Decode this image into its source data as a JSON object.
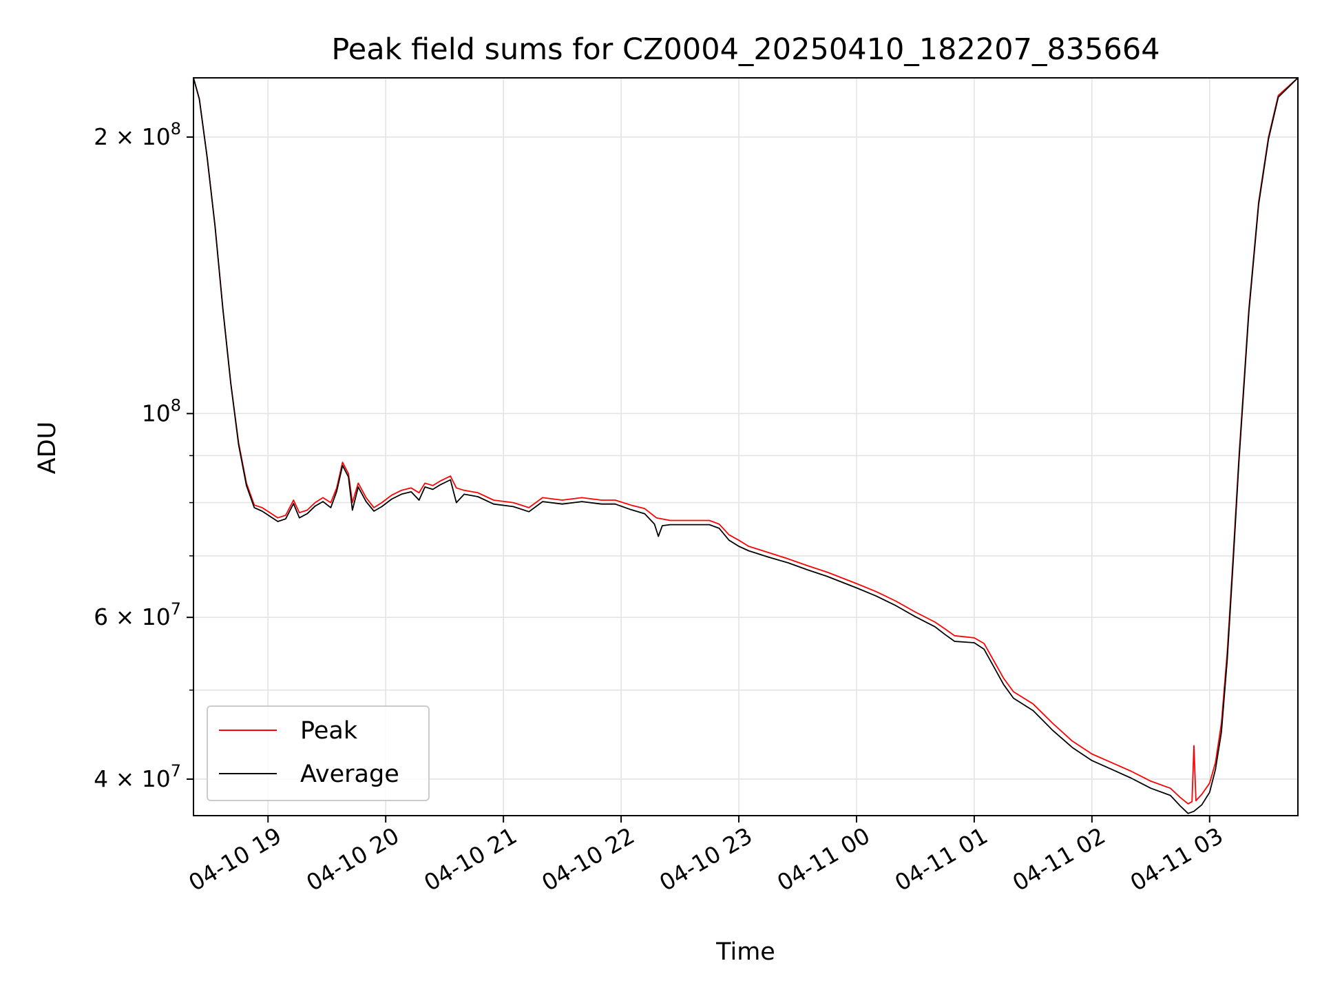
{
  "chart_data": {
    "type": "line",
    "title": "Peak field sums for CZ0004_20250410_182207_835664",
    "xlabel": "Time",
    "ylabel": "ADU",
    "y_scale": "log",
    "ylim": [
      36500000,
      232000000
    ],
    "xlim": [
      "2025-04-10 18:22",
      "2025-04-11 03:45"
    ],
    "grid": true,
    "legend_position": "lower-left",
    "x_ticks": [
      {
        "value": "2025-04-10 19:00",
        "label": "04-10 19"
      },
      {
        "value": "2025-04-10 20:00",
        "label": "04-10 20"
      },
      {
        "value": "2025-04-10 21:00",
        "label": "04-10 21"
      },
      {
        "value": "2025-04-10 22:00",
        "label": "04-10 22"
      },
      {
        "value": "2025-04-10 23:00",
        "label": "04-10 23"
      },
      {
        "value": "2025-04-11 00:00",
        "label": "04-11 00"
      },
      {
        "value": "2025-04-11 01:00",
        "label": "04-11 01"
      },
      {
        "value": "2025-04-11 02:00",
        "label": "04-11 02"
      },
      {
        "value": "2025-04-11 03:00",
        "label": "04-11 03"
      }
    ],
    "y_major_ticks": [
      {
        "value": 40000000,
        "mantissa": "4",
        "times": "×",
        "base": "10",
        "exp": "7"
      },
      {
        "value": 60000000,
        "mantissa": "6",
        "times": "×",
        "base": "10",
        "exp": "7"
      },
      {
        "value": 100000000,
        "mantissa": "",
        "times": "",
        "base": "10",
        "exp": "8"
      },
      {
        "value": 200000000,
        "mantissa": "2",
        "times": "×",
        "base": "10",
        "exp": "8"
      }
    ],
    "y_minor_ticks": [
      50000000,
      70000000,
      80000000,
      90000000
    ],
    "series": [
      {
        "name": "Peak",
        "color": "#ff0000",
        "points": [
          [
            "2025-04-10 18:22",
            232000000
          ],
          [
            "2025-04-10 18:25",
            220000000
          ],
          [
            "2025-04-10 18:29",
            190000000
          ],
          [
            "2025-04-10 18:33",
            160000000
          ],
          [
            "2025-04-10 18:37",
            130000000
          ],
          [
            "2025-04-10 18:41",
            108000000
          ],
          [
            "2025-04-10 18:45",
            93000000
          ],
          [
            "2025-04-10 18:49",
            84000000
          ],
          [
            "2025-04-10 18:53",
            79500000
          ],
          [
            "2025-04-10 18:57",
            79000000
          ],
          [
            "2025-04-10 19:01",
            78000000
          ],
          [
            "2025-04-10 19:05",
            77000000
          ],
          [
            "2025-04-10 19:09",
            77500000
          ],
          [
            "2025-04-10 19:13",
            80500000
          ],
          [
            "2025-04-10 19:16",
            78000000
          ],
          [
            "2025-04-10 19:20",
            78500000
          ],
          [
            "2025-04-10 19:24",
            80000000
          ],
          [
            "2025-04-10 19:28",
            81000000
          ],
          [
            "2025-04-10 19:32",
            80000000
          ],
          [
            "2025-04-10 19:35",
            83000000
          ],
          [
            "2025-04-10 19:38",
            88500000
          ],
          [
            "2025-04-10 19:41",
            86000000
          ],
          [
            "2025-04-10 19:43",
            80000000
          ],
          [
            "2025-04-10 19:46",
            84000000
          ],
          [
            "2025-04-10 19:50",
            81000000
          ],
          [
            "2025-04-10 19:54",
            79000000
          ],
          [
            "2025-04-10 19:58",
            80000000
          ],
          [
            "2025-04-10 20:03",
            81500000
          ],
          [
            "2025-04-10 20:08",
            82500000
          ],
          [
            "2025-04-10 20:13",
            83000000
          ],
          [
            "2025-04-10 20:17",
            82000000
          ],
          [
            "2025-04-10 20:20",
            84000000
          ],
          [
            "2025-04-10 20:24",
            83500000
          ],
          [
            "2025-04-10 20:28",
            84500000
          ],
          [
            "2025-04-10 20:33",
            85500000
          ],
          [
            "2025-04-10 20:36",
            83000000
          ],
          [
            "2025-04-10 20:40",
            82500000
          ],
          [
            "2025-04-10 20:47",
            82000000
          ],
          [
            "2025-04-10 20:55",
            80500000
          ],
          [
            "2025-04-10 21:05",
            80000000
          ],
          [
            "2025-04-10 21:13",
            79000000
          ],
          [
            "2025-04-10 21:20",
            81000000
          ],
          [
            "2025-04-10 21:30",
            80500000
          ],
          [
            "2025-04-10 21:40",
            81000000
          ],
          [
            "2025-04-10 21:50",
            80500000
          ],
          [
            "2025-04-10 21:57",
            80500000
          ],
          [
            "2025-04-10 22:05",
            79500000
          ],
          [
            "2025-04-10 22:12",
            78800000
          ],
          [
            "2025-04-10 22:18",
            77000000
          ],
          [
            "2025-04-10 22:25",
            76500000
          ],
          [
            "2025-04-10 22:35",
            76500000
          ],
          [
            "2025-04-10 22:45",
            76500000
          ],
          [
            "2025-04-10 22:50",
            75800000
          ],
          [
            "2025-04-10 22:55",
            73800000
          ],
          [
            "2025-04-10 23:00",
            72800000
          ],
          [
            "2025-04-10 23:05",
            71700000
          ],
          [
            "2025-04-10 23:15",
            70600000
          ],
          [
            "2025-04-10 23:25",
            69500000
          ],
          [
            "2025-04-10 23:35",
            68300000
          ],
          [
            "2025-04-10 23:45",
            67200000
          ],
          [
            "2025-04-11 00:00",
            65300000
          ],
          [
            "2025-04-11 00:10",
            64000000
          ],
          [
            "2025-04-11 00:20",
            62500000
          ],
          [
            "2025-04-11 00:30",
            60800000
          ],
          [
            "2025-04-11 00:40",
            59300000
          ],
          [
            "2025-04-11 00:45",
            58300000
          ],
          [
            "2025-04-11 00:50",
            57300000
          ],
          [
            "2025-04-11 01:00",
            57000000
          ],
          [
            "2025-04-11 01:05",
            56200000
          ],
          [
            "2025-04-11 01:10",
            53800000
          ],
          [
            "2025-04-11 01:15",
            51500000
          ],
          [
            "2025-04-11 01:20",
            49800000
          ],
          [
            "2025-04-11 01:30",
            48300000
          ],
          [
            "2025-04-11 01:40",
            46000000
          ],
          [
            "2025-04-11 01:50",
            44000000
          ],
          [
            "2025-04-11 02:00",
            42600000
          ],
          [
            "2025-04-11 02:10",
            41700000
          ],
          [
            "2025-04-11 02:20",
            40800000
          ],
          [
            "2025-04-11 02:30",
            39800000
          ],
          [
            "2025-04-11 02:40",
            39100000
          ],
          [
            "2025-04-11 02:45",
            38200000
          ],
          [
            "2025-04-11 02:49",
            37600000
          ],
          [
            "2025-04-11 02:51",
            37800000
          ],
          [
            "2025-04-11 02:52",
            43500000
          ],
          [
            "2025-04-11 02:53",
            37900000
          ],
          [
            "2025-04-11 02:56",
            38500000
          ],
          [
            "2025-04-11 03:00",
            39600000
          ],
          [
            "2025-04-11 03:03",
            41700000
          ],
          [
            "2025-04-11 03:06",
            46000000
          ],
          [
            "2025-04-11 03:09",
            55000000
          ],
          [
            "2025-04-11 03:12",
            70000000
          ],
          [
            "2025-04-11 03:15",
            90000000
          ],
          [
            "2025-04-11 03:20",
            130000000
          ],
          [
            "2025-04-11 03:25",
            170000000
          ],
          [
            "2025-04-11 03:30",
            200000000
          ],
          [
            "2025-04-11 03:35",
            222000000
          ],
          [
            "2025-04-11 03:45",
            232000000
          ]
        ]
      },
      {
        "name": "Average",
        "color": "#000000",
        "points": [
          [
            "2025-04-10 18:22",
            232000000
          ],
          [
            "2025-04-10 18:25",
            220000000
          ],
          [
            "2025-04-10 18:29",
            190000000
          ],
          [
            "2025-04-10 18:33",
            160000000
          ],
          [
            "2025-04-10 18:37",
            130000000
          ],
          [
            "2025-04-10 18:41",
            108000000
          ],
          [
            "2025-04-10 18:45",
            92500000
          ],
          [
            "2025-04-10 18:49",
            83500000
          ],
          [
            "2025-04-10 18:53",
            79000000
          ],
          [
            "2025-04-10 18:57",
            78300000
          ],
          [
            "2025-04-10 19:01",
            77300000
          ],
          [
            "2025-04-10 19:05",
            76300000
          ],
          [
            "2025-04-10 19:09",
            76800000
          ],
          [
            "2025-04-10 19:13",
            79800000
          ],
          [
            "2025-04-10 19:16",
            77000000
          ],
          [
            "2025-04-10 19:20",
            77800000
          ],
          [
            "2025-04-10 19:24",
            79300000
          ],
          [
            "2025-04-10 19:28",
            80200000
          ],
          [
            "2025-04-10 19:32",
            79000000
          ],
          [
            "2025-04-10 19:35",
            82300000
          ],
          [
            "2025-04-10 19:38",
            87800000
          ],
          [
            "2025-04-10 19:41",
            85300000
          ],
          [
            "2025-04-10 19:43",
            78500000
          ],
          [
            "2025-04-10 19:46",
            83200000
          ],
          [
            "2025-04-10 19:50",
            80200000
          ],
          [
            "2025-04-10 19:54",
            78300000
          ],
          [
            "2025-04-10 19:58",
            79200000
          ],
          [
            "2025-04-10 20:03",
            80700000
          ],
          [
            "2025-04-10 20:08",
            81700000
          ],
          [
            "2025-04-10 20:13",
            82200000
          ],
          [
            "2025-04-10 20:17",
            80500000
          ],
          [
            "2025-04-10 20:20",
            83200000
          ],
          [
            "2025-04-10 20:24",
            82700000
          ],
          [
            "2025-04-10 20:28",
            83700000
          ],
          [
            "2025-04-10 20:33",
            84700000
          ],
          [
            "2025-04-10 20:36",
            80000000
          ],
          [
            "2025-04-10 20:40",
            81700000
          ],
          [
            "2025-04-10 20:47",
            81200000
          ],
          [
            "2025-04-10 20:55",
            79700000
          ],
          [
            "2025-04-10 21:05",
            79200000
          ],
          [
            "2025-04-10 21:13",
            78200000
          ],
          [
            "2025-04-10 21:20",
            80200000
          ],
          [
            "2025-04-10 21:30",
            79700000
          ],
          [
            "2025-04-10 21:40",
            80200000
          ],
          [
            "2025-04-10 21:50",
            79700000
          ],
          [
            "2025-04-10 21:57",
            79700000
          ],
          [
            "2025-04-10 22:05",
            78600000
          ],
          [
            "2025-04-10 22:12",
            77800000
          ],
          [
            "2025-04-10 22:17",
            75800000
          ],
          [
            "2025-04-10 22:19",
            73500000
          ],
          [
            "2025-04-10 22:21",
            75500000
          ],
          [
            "2025-04-10 22:25",
            75700000
          ],
          [
            "2025-04-10 22:35",
            75700000
          ],
          [
            "2025-04-10 22:45",
            75700000
          ],
          [
            "2025-04-10 22:50",
            75000000
          ],
          [
            "2025-04-10 22:55",
            72800000
          ],
          [
            "2025-04-10 23:00",
            71700000
          ],
          [
            "2025-04-10 23:05",
            70900000
          ],
          [
            "2025-04-10 23:15",
            69800000
          ],
          [
            "2025-04-10 23:25",
            68800000
          ],
          [
            "2025-04-10 23:35",
            67600000
          ],
          [
            "2025-04-10 23:45",
            66500000
          ],
          [
            "2025-04-11 00:00",
            64600000
          ],
          [
            "2025-04-11 00:10",
            63300000
          ],
          [
            "2025-04-11 00:20",
            61800000
          ],
          [
            "2025-04-11 00:30",
            60100000
          ],
          [
            "2025-04-11 00:40",
            58600000
          ],
          [
            "2025-04-11 00:45",
            57500000
          ],
          [
            "2025-04-11 00:50",
            56500000
          ],
          [
            "2025-04-11 01:00",
            56300000
          ],
          [
            "2025-04-11 01:05",
            55400000
          ],
          [
            "2025-04-11 01:10",
            53000000
          ],
          [
            "2025-04-11 01:15",
            50700000
          ],
          [
            "2025-04-11 01:20",
            49000000
          ],
          [
            "2025-04-11 01:30",
            47500000
          ],
          [
            "2025-04-11 01:40",
            45200000
          ],
          [
            "2025-04-11 01:50",
            43300000
          ],
          [
            "2025-04-11 02:00",
            41900000
          ],
          [
            "2025-04-11 02:10",
            41000000
          ],
          [
            "2025-04-11 02:20",
            40100000
          ],
          [
            "2025-04-11 02:30",
            39100000
          ],
          [
            "2025-04-11 02:40",
            38400000
          ],
          [
            "2025-04-11 02:45",
            37400000
          ],
          [
            "2025-04-11 02:49",
            36700000
          ],
          [
            "2025-04-11 02:52",
            36900000
          ],
          [
            "2025-04-11 02:56",
            37500000
          ],
          [
            "2025-04-11 03:00",
            38700000
          ],
          [
            "2025-04-11 03:03",
            41000000
          ],
          [
            "2025-04-11 03:06",
            45000000
          ],
          [
            "2025-04-11 03:09",
            54000000
          ],
          [
            "2025-04-11 03:12",
            69000000
          ],
          [
            "2025-04-11 03:15",
            89000000
          ],
          [
            "2025-04-11 03:20",
            129000000
          ],
          [
            "2025-04-11 03:25",
            169000000
          ],
          [
            "2025-04-11 03:30",
            199000000
          ],
          [
            "2025-04-11 03:35",
            221000000
          ],
          [
            "2025-04-11 03:45",
            232000000
          ]
        ]
      }
    ]
  }
}
